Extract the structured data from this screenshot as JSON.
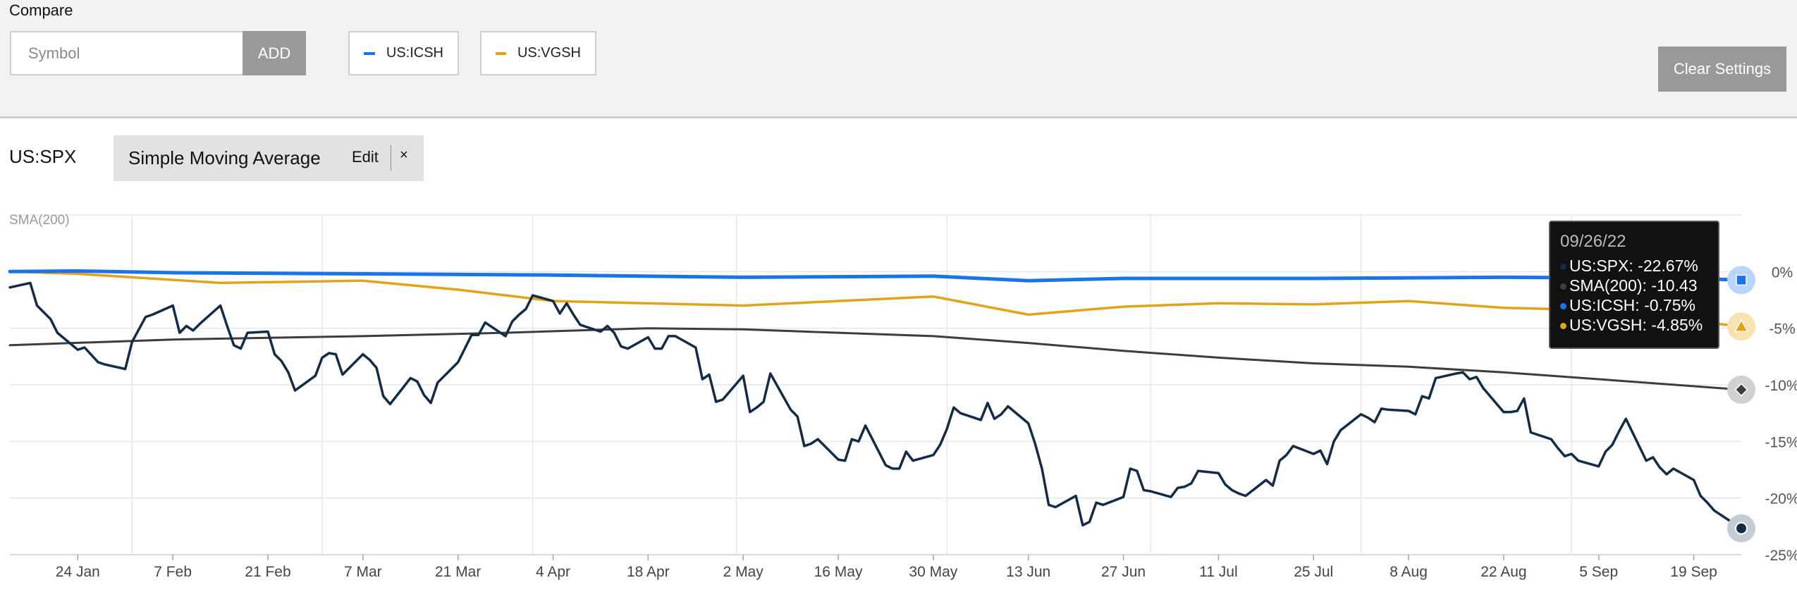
{
  "compare": {
    "label": "Compare",
    "symbol_placeholder": "Symbol",
    "add_label": "ADD",
    "chips": [
      {
        "label": "US:ICSH",
        "color": "#1a73e8"
      },
      {
        "label": "US:VGSH",
        "color": "#e3a21a"
      }
    ],
    "clear_label": "Clear Settings"
  },
  "main": {
    "symbol": "US:SPX",
    "indicator": {
      "name": "Simple Moving Average",
      "edit_label": "Edit",
      "close_label": "×"
    }
  },
  "chart_data": {
    "type": "line",
    "indicator_label": "SMA(200)",
    "x_ticks": [
      "24 Jan",
      "7 Feb",
      "21 Feb",
      "7 Mar",
      "21 Mar",
      "4 Apr",
      "18 Apr",
      "2 May",
      "16 May",
      "30 May",
      "13 Jun",
      "27 Jun",
      "11 Jul",
      "25 Jul",
      "8 Aug",
      "22 Aug",
      "5 Sep",
      "19 Sep"
    ],
    "x_range": [
      "2022-01-14",
      "2022-09-26"
    ],
    "y_ticks": [
      "0%",
      "-5%",
      "-10%",
      "-15%",
      "-20%",
      "-25%"
    ],
    "ylim": [
      -25,
      5
    ],
    "grid": true,
    "series": [
      {
        "name": "US:SPX",
        "color": "#142b45",
        "points": [
          [
            "2022-01-14",
            -1.4
          ],
          [
            "2022-01-17",
            -1.0
          ],
          [
            "2022-01-18",
            -3.0
          ],
          [
            "2022-01-20",
            -4.2
          ],
          [
            "2022-01-21",
            -5.4
          ],
          [
            "2022-01-24",
            -6.9
          ],
          [
            "2022-01-25",
            -6.7
          ],
          [
            "2022-01-27",
            -8.0
          ],
          [
            "2022-01-28",
            -8.2
          ],
          [
            "2022-01-31",
            -8.6
          ],
          [
            "2022-02-01",
            -6.2
          ],
          [
            "2022-02-03",
            -4.0
          ],
          [
            "2022-02-04",
            -3.8
          ],
          [
            "2022-02-07",
            -3.0
          ],
          [
            "2022-02-08",
            -5.4
          ],
          [
            "2022-02-09",
            -4.8
          ],
          [
            "2022-02-10",
            -5.2
          ],
          [
            "2022-02-11",
            -4.6
          ],
          [
            "2022-02-14",
            -3.0
          ],
          [
            "2022-02-15",
            -4.8
          ],
          [
            "2022-02-16",
            -6.5
          ],
          [
            "2022-02-17",
            -6.8
          ],
          [
            "2022-02-18",
            -5.4
          ],
          [
            "2022-02-21",
            -5.3
          ],
          [
            "2022-02-22",
            -7.3
          ],
          [
            "2022-02-23",
            -7.9
          ],
          [
            "2022-02-24",
            -8.9
          ],
          [
            "2022-02-25",
            -10.5
          ],
          [
            "2022-02-28",
            -9.2
          ],
          [
            "2022-03-01",
            -7.6
          ],
          [
            "2022-03-02",
            -7.2
          ],
          [
            "2022-03-03",
            -7.3
          ],
          [
            "2022-03-04",
            -9.1
          ],
          [
            "2022-03-07",
            -7.3
          ],
          [
            "2022-03-08",
            -7.8
          ],
          [
            "2022-03-09",
            -8.5
          ],
          [
            "2022-03-10",
            -11.0
          ],
          [
            "2022-03-11",
            -11.7
          ],
          [
            "2022-03-14",
            -9.4
          ],
          [
            "2022-03-15",
            -9.7
          ],
          [
            "2022-03-16",
            -10.9
          ],
          [
            "2022-03-17",
            -11.6
          ],
          [
            "2022-03-18",
            -9.8
          ],
          [
            "2022-03-21",
            -8.0
          ],
          [
            "2022-03-22",
            -6.8
          ],
          [
            "2022-03-23",
            -5.6
          ],
          [
            "2022-03-24",
            -5.6
          ],
          [
            "2022-03-25",
            -4.5
          ],
          [
            "2022-03-28",
            -5.7
          ],
          [
            "2022-03-29",
            -4.4
          ],
          [
            "2022-03-30",
            -3.8
          ],
          [
            "2022-03-31",
            -3.3
          ],
          [
            "2022-04-01",
            -2.1
          ],
          [
            "2022-04-04",
            -2.6
          ],
          [
            "2022-04-05",
            -3.7
          ],
          [
            "2022-04-06",
            -2.8
          ],
          [
            "2022-04-07",
            -3.8
          ],
          [
            "2022-04-08",
            -4.7
          ],
          [
            "2022-04-11",
            -5.3
          ],
          [
            "2022-04-12",
            -4.8
          ],
          [
            "2022-04-13",
            -5.4
          ],
          [
            "2022-04-14",
            -6.6
          ],
          [
            "2022-04-15",
            -6.8
          ],
          [
            "2022-04-18",
            -5.8
          ],
          [
            "2022-04-19",
            -6.8
          ],
          [
            "2022-04-20",
            -6.8
          ],
          [
            "2022-04-21",
            -5.7
          ],
          [
            "2022-04-22",
            -5.7
          ],
          [
            "2022-04-25",
            -6.7
          ],
          [
            "2022-04-26",
            -9.5
          ],
          [
            "2022-04-27",
            -9.1
          ],
          [
            "2022-04-28",
            -11.5
          ],
          [
            "2022-04-29",
            -11.3
          ],
          [
            "2022-05-02",
            -9.2
          ],
          [
            "2022-05-03",
            -12.4
          ],
          [
            "2022-05-04",
            -12.0
          ],
          [
            "2022-05-05",
            -11.5
          ],
          [
            "2022-05-06",
            -9.0
          ],
          [
            "2022-05-09",
            -12.2
          ],
          [
            "2022-05-10",
            -12.8
          ],
          [
            "2022-05-11",
            -15.4
          ],
          [
            "2022-05-12",
            -15.2
          ],
          [
            "2022-05-13",
            -14.8
          ],
          [
            "2022-05-16",
            -16.6
          ],
          [
            "2022-05-17",
            -16.7
          ],
          [
            "2022-05-18",
            -14.8
          ],
          [
            "2022-05-19",
            -15.0
          ],
          [
            "2022-05-20",
            -13.6
          ],
          [
            "2022-05-23",
            -17.1
          ],
          [
            "2022-05-24",
            -17.4
          ],
          [
            "2022-05-25",
            -17.4
          ],
          [
            "2022-05-26",
            -15.9
          ],
          [
            "2022-05-27",
            -16.7
          ],
          [
            "2022-05-30",
            -16.2
          ],
          [
            "2022-05-31",
            -15.3
          ],
          [
            "2022-06-01",
            -13.9
          ],
          [
            "2022-06-02",
            -12.0
          ],
          [
            "2022-06-03",
            -12.5
          ],
          [
            "2022-06-06",
            -13.1
          ],
          [
            "2022-06-07",
            -11.6
          ],
          [
            "2022-06-08",
            -13.0
          ],
          [
            "2022-06-09",
            -12.6
          ],
          [
            "2022-06-10",
            -11.9
          ],
          [
            "2022-06-13",
            -13.4
          ],
          [
            "2022-06-14",
            -15.2
          ],
          [
            "2022-06-15",
            -17.4
          ],
          [
            "2022-06-16",
            -20.6
          ],
          [
            "2022-06-17",
            -20.8
          ],
          [
            "2022-06-20",
            -19.8
          ],
          [
            "2022-06-21",
            -22.4
          ],
          [
            "2022-06-22",
            -22.1
          ],
          [
            "2022-06-23",
            -20.4
          ],
          [
            "2022-06-24",
            -20.6
          ],
          [
            "2022-06-27",
            -19.9
          ],
          [
            "2022-06-28",
            -17.4
          ],
          [
            "2022-06-29",
            -17.6
          ],
          [
            "2022-06-30",
            -19.3
          ],
          [
            "2022-07-01",
            -19.4
          ],
          [
            "2022-07-04",
            -19.9
          ],
          [
            "2022-07-05",
            -19.1
          ],
          [
            "2022-07-06",
            -19.0
          ],
          [
            "2022-07-07",
            -18.7
          ],
          [
            "2022-07-08",
            -17.6
          ],
          [
            "2022-07-11",
            -17.8
          ],
          [
            "2022-07-12",
            -18.8
          ],
          [
            "2022-07-13",
            -19.3
          ],
          [
            "2022-07-14",
            -19.6
          ],
          [
            "2022-07-15",
            -19.8
          ],
          [
            "2022-07-18",
            -18.4
          ],
          [
            "2022-07-19",
            -18.9
          ],
          [
            "2022-07-20",
            -16.7
          ],
          [
            "2022-07-21",
            -16.2
          ],
          [
            "2022-07-22",
            -15.4
          ],
          [
            "2022-07-25",
            -16.1
          ],
          [
            "2022-07-26",
            -15.8
          ],
          [
            "2022-07-27",
            -17.0
          ],
          [
            "2022-07-28",
            -15.0
          ],
          [
            "2022-07-29",
            -14.0
          ],
          [
            "2022-08-01",
            -12.6
          ],
          [
            "2022-08-02",
            -12.9
          ],
          [
            "2022-08-03",
            -13.3
          ],
          [
            "2022-08-04",
            -12.1
          ],
          [
            "2022-08-05",
            -12.2
          ],
          [
            "2022-08-08",
            -12.3
          ],
          [
            "2022-08-09",
            -12.6
          ],
          [
            "2022-08-10",
            -11.0
          ],
          [
            "2022-08-11",
            -11.2
          ],
          [
            "2022-08-12",
            -9.4
          ],
          [
            "2022-08-15",
            -9.0
          ],
          [
            "2022-08-16",
            -8.9
          ],
          [
            "2022-08-17",
            -9.5
          ],
          [
            "2022-08-18",
            -9.3
          ],
          [
            "2022-08-19",
            -10.3
          ],
          [
            "2022-08-22",
            -12.4
          ],
          [
            "2022-08-23",
            -12.4
          ],
          [
            "2022-08-24",
            -12.3
          ],
          [
            "2022-08-25",
            -11.2
          ],
          [
            "2022-08-26",
            -14.2
          ],
          [
            "2022-08-29",
            -14.8
          ],
          [
            "2022-08-30",
            -15.6
          ],
          [
            "2022-08-31",
            -16.3
          ],
          [
            "2022-09-01",
            -16.1
          ],
          [
            "2022-09-02",
            -16.7
          ],
          [
            "2022-09-05",
            -17.2
          ],
          [
            "2022-09-06",
            -15.9
          ],
          [
            "2022-09-07",
            -15.3
          ],
          [
            "2022-09-08",
            -14.1
          ],
          [
            "2022-09-09",
            -13.0
          ],
          [
            "2022-09-12",
            -16.7
          ],
          [
            "2022-09-13",
            -16.4
          ],
          [
            "2022-09-14",
            -17.3
          ],
          [
            "2022-09-15",
            -17.9
          ],
          [
            "2022-09-16",
            -17.4
          ],
          [
            "2022-09-19",
            -18.4
          ],
          [
            "2022-09-20",
            -19.8
          ],
          [
            "2022-09-21",
            -20.4
          ],
          [
            "2022-09-22",
            -21.1
          ],
          [
            "2022-09-26",
            -22.67
          ]
        ]
      },
      {
        "name": "SMA(200)",
        "color": "#3d3d3d",
        "points": [
          [
            "2022-01-14",
            -6.5
          ],
          [
            "2022-02-07",
            -6.0
          ],
          [
            "2022-03-07",
            -5.7
          ],
          [
            "2022-03-28",
            -5.4
          ],
          [
            "2022-04-18",
            -5.0
          ],
          [
            "2022-05-02",
            -5.1
          ],
          [
            "2022-05-30",
            -5.7
          ],
          [
            "2022-06-13",
            -6.3
          ],
          [
            "2022-06-27",
            -7.0
          ],
          [
            "2022-07-11",
            -7.6
          ],
          [
            "2022-07-25",
            -8.1
          ],
          [
            "2022-08-08",
            -8.4
          ],
          [
            "2022-08-22",
            -8.9
          ],
          [
            "2022-09-05",
            -9.5
          ],
          [
            "2022-09-26",
            -10.43
          ]
        ]
      },
      {
        "name": "US:ICSH",
        "color": "#1a73e8",
        "points": [
          [
            "2022-01-14",
            0.0
          ],
          [
            "2022-01-24",
            0.05
          ],
          [
            "2022-02-07",
            -0.1
          ],
          [
            "2022-03-07",
            -0.2
          ],
          [
            "2022-04-04",
            -0.3
          ],
          [
            "2022-05-02",
            -0.5
          ],
          [
            "2022-05-30",
            -0.4
          ],
          [
            "2022-06-13",
            -0.8
          ],
          [
            "2022-06-27",
            -0.6
          ],
          [
            "2022-07-25",
            -0.6
          ],
          [
            "2022-08-22",
            -0.5
          ],
          [
            "2022-09-19",
            -0.6
          ],
          [
            "2022-09-26",
            -0.75
          ]
        ]
      },
      {
        "name": "US:VGSH",
        "color": "#e3a21a",
        "points": [
          [
            "2022-01-14",
            0.0
          ],
          [
            "2022-01-24",
            -0.2
          ],
          [
            "2022-02-14",
            -1.0
          ],
          [
            "2022-03-07",
            -0.8
          ],
          [
            "2022-03-21",
            -1.6
          ],
          [
            "2022-04-04",
            -2.6
          ],
          [
            "2022-05-02",
            -3.0
          ],
          [
            "2022-05-30",
            -2.2
          ],
          [
            "2022-06-13",
            -3.8
          ],
          [
            "2022-06-27",
            -3.1
          ],
          [
            "2022-07-11",
            -2.8
          ],
          [
            "2022-07-25",
            -2.9
          ],
          [
            "2022-08-08",
            -2.6
          ],
          [
            "2022-08-22",
            -3.2
          ],
          [
            "2022-09-05",
            -3.4
          ],
          [
            "2022-09-26",
            -4.85
          ]
        ]
      }
    ],
    "tooltip": {
      "date": "09/26/22",
      "rows": [
        {
          "label": "US:SPX:",
          "value": "-22.67%",
          "color": "#142b45"
        },
        {
          "label": "SMA(200):",
          "value": "-10.43",
          "color": "#3d3d3d"
        },
        {
          "label": "US:ICSH:",
          "value": "-0.75%",
          "color": "#1a73e8"
        },
        {
          "label": "US:VGSH:",
          "value": "-4.85%",
          "color": "#e3a21a"
        }
      ]
    }
  }
}
